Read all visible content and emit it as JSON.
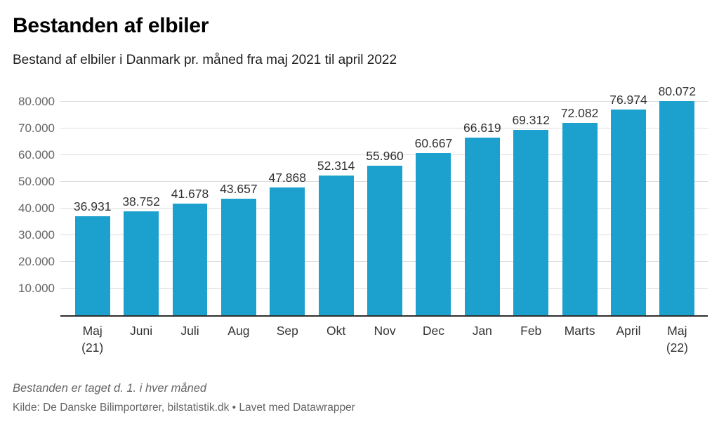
{
  "header": {
    "title": "Bestanden af elbiler",
    "subtitle": "Bestand af elbiler i Danmark pr. måned fra maj 2021 til april 2022"
  },
  "chart_data": {
    "type": "bar",
    "title": "Bestanden af elbiler",
    "subtitle": "Bestand af elbiler i Danmark pr. måned fra maj 2021 til april 2022",
    "categories": [
      "Maj (21)",
      "Juni",
      "Juli",
      "Aug",
      "Sep",
      "Okt",
      "Nov",
      "Dec",
      "Jan",
      "Feb",
      "Marts",
      "April",
      "Maj (22)"
    ],
    "category_lines": [
      [
        "Maj",
        "(21)"
      ],
      [
        "Juni"
      ],
      [
        "Juli"
      ],
      [
        "Aug"
      ],
      [
        "Sep"
      ],
      [
        "Okt"
      ],
      [
        "Nov"
      ],
      [
        "Dec"
      ],
      [
        "Jan"
      ],
      [
        "Feb"
      ],
      [
        "Marts"
      ],
      [
        "April"
      ],
      [
        "Maj",
        "(22)"
      ]
    ],
    "values": [
      36931,
      38752,
      41678,
      43657,
      47868,
      52314,
      55960,
      60667,
      66619,
      69312,
      72082,
      76974,
      80072
    ],
    "value_labels": [
      "36.931",
      "38.752",
      "41.678",
      "43.657",
      "47.868",
      "52.314",
      "55.960",
      "60.667",
      "66.619",
      "69.312",
      "72.082",
      "76.974",
      "80.072"
    ],
    "y_ticks": [
      {
        "value": 10000,
        "label": "10.000"
      },
      {
        "value": 20000,
        "label": "20.000"
      },
      {
        "value": 30000,
        "label": "30.000"
      },
      {
        "value": 40000,
        "label": "40.000"
      },
      {
        "value": 50000,
        "label": "50.000"
      },
      {
        "value": 60000,
        "label": "60.000"
      },
      {
        "value": 70000,
        "label": "70.000"
      },
      {
        "value": 80000,
        "label": "80.000"
      }
    ],
    "xlabel": "",
    "ylabel": "",
    "ylim": [
      0,
      86000
    ],
    "grid": true,
    "legend": "none"
  },
  "footer": {
    "note": "Bestanden er taget d. 1. i hver måned",
    "source": "Kilde: De Danske Bilimportører, bilstatistik.dk • Lavet med Datawrapper"
  },
  "colors": {
    "bar": "#1CA0CD",
    "grid": "#DDDDDD",
    "baseline": "#2E2E2E",
    "axis_text": "#666666",
    "label_text": "#333333"
  }
}
